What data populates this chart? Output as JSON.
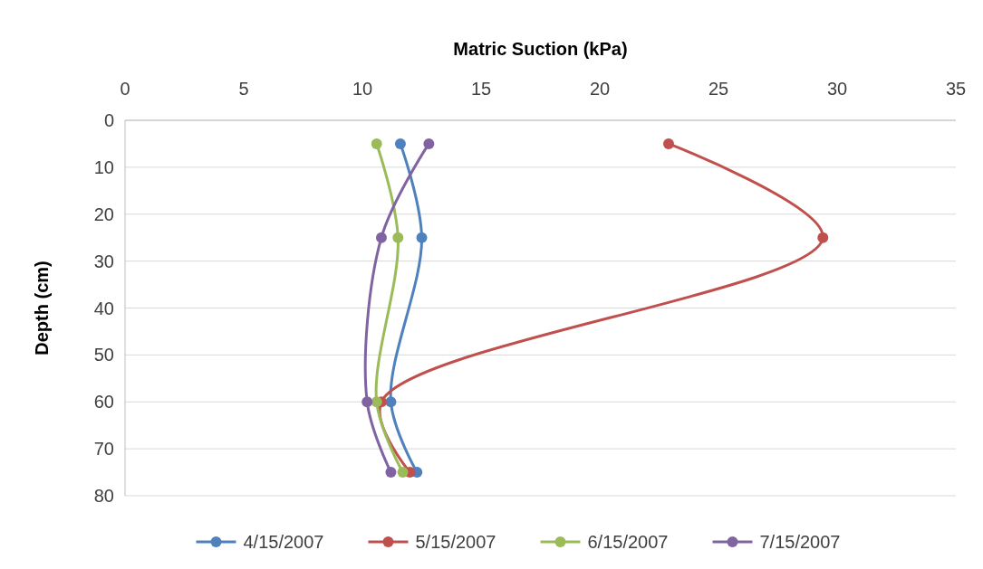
{
  "chart_data": {
    "type": "line",
    "xlabel": "Matric Suction (kPa)",
    "ylabel": "Depth (cm)",
    "xlim": [
      0,
      35
    ],
    "xticks": [
      0,
      5,
      10,
      15,
      20,
      25,
      30,
      35
    ],
    "ylim": [
      80,
      0
    ],
    "yticks": [
      0,
      10,
      20,
      30,
      40,
      50,
      60,
      70,
      80
    ],
    "grid": "y",
    "legend": "bottom",
    "marker": "circle",
    "line_style": "solid",
    "series": [
      {
        "name": "4/15/2007",
        "color": "#4f81bd",
        "x": [
          11.6,
          12.5,
          11.2,
          12.3
        ],
        "values": [
          5,
          25,
          60,
          75
        ]
      },
      {
        "name": "5/15/2007",
        "color": "#c0504d",
        "x": [
          22.9,
          29.4,
          10.8,
          12.0
        ],
        "values": [
          5,
          25,
          60,
          75
        ]
      },
      {
        "name": "6/15/2007",
        "color": "#9bbb59",
        "x": [
          10.6,
          11.5,
          10.6,
          11.7
        ],
        "values": [
          5,
          25,
          60,
          75
        ]
      },
      {
        "name": "7/15/2007",
        "color": "#8064a2",
        "x": [
          12.8,
          10.8,
          10.2,
          11.2
        ],
        "values": [
          5,
          25,
          60,
          75
        ]
      }
    ]
  }
}
